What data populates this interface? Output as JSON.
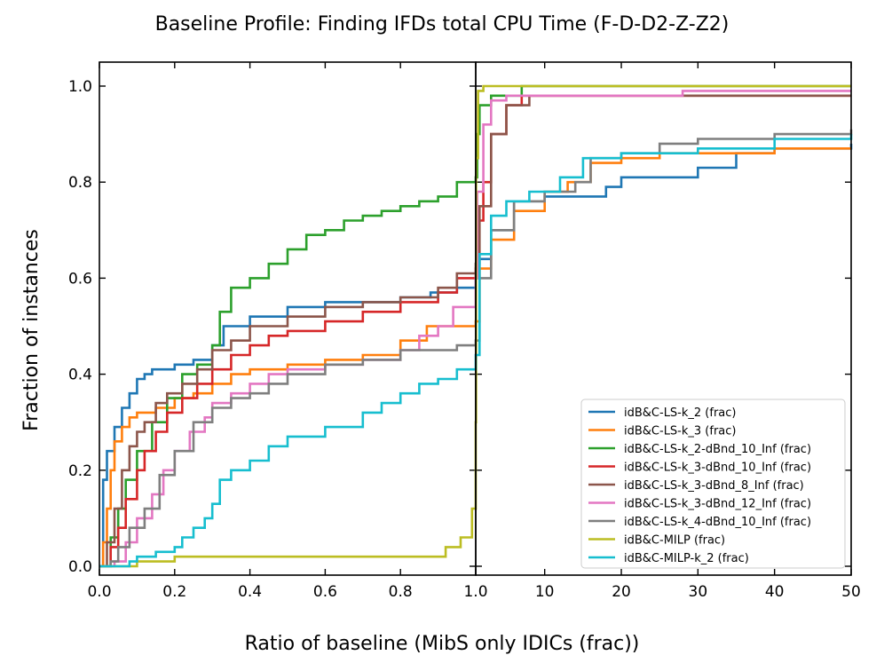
{
  "chart_data": {
    "type": "line",
    "title": "Baseline Profile: Finding IFDs total CPU Time (F-D-D2-Z-Z2)",
    "xlabel": "Ratio of baseline (MibS only IDICs (frac))",
    "ylabel": "Fraction of instances",
    "left_panel": {
      "xlim": [
        0.0,
        1.0
      ],
      "xticks": [
        "0.0",
        "0.2",
        "0.4",
        "0.6",
        "0.8"
      ]
    },
    "right_panel": {
      "xlim": [
        1.0,
        50
      ],
      "xticks": [
        "1.0",
        "10",
        "20",
        "30",
        "40",
        "50"
      ]
    },
    "ylim": [
      0.0,
      1.0
    ],
    "yticks": [
      "0.0",
      "0.2",
      "0.4",
      "0.6",
      "0.8",
      "1.0"
    ],
    "legend_position": "lower-right",
    "series": [
      {
        "name": "idB&C-LS-k_2 (frac)",
        "color": "#1f77b4",
        "points": [
          [
            0,
            0
          ],
          [
            0.01,
            0.18
          ],
          [
            0.02,
            0.24
          ],
          [
            0.04,
            0.29
          ],
          [
            0.06,
            0.33
          ],
          [
            0.08,
            0.36
          ],
          [
            0.1,
            0.39
          ],
          [
            0.12,
            0.4
          ],
          [
            0.14,
            0.41
          ],
          [
            0.2,
            0.42
          ],
          [
            0.25,
            0.43
          ],
          [
            0.3,
            0.46
          ],
          [
            0.33,
            0.5
          ],
          [
            0.4,
            0.52
          ],
          [
            0.5,
            0.54
          ],
          [
            0.6,
            0.55
          ],
          [
            0.7,
            0.55
          ],
          [
            0.8,
            0.56
          ],
          [
            0.88,
            0.57
          ],
          [
            0.95,
            0.58
          ],
          [
            1.0,
            0.6
          ],
          [
            1.5,
            0.64
          ],
          [
            3,
            0.7
          ],
          [
            6,
            0.76
          ],
          [
            10,
            0.77
          ],
          [
            15,
            0.77
          ],
          [
            18,
            0.79
          ],
          [
            20,
            0.81
          ],
          [
            25,
            0.81
          ],
          [
            30,
            0.83
          ],
          [
            35,
            0.86
          ],
          [
            40,
            0.87
          ],
          [
            45,
            0.87
          ],
          [
            50,
            0.88
          ]
        ]
      },
      {
        "name": "idB&C-LS-k_3 (frac)",
        "color": "#ff7f0e",
        "points": [
          [
            0,
            0
          ],
          [
            0.01,
            0.05
          ],
          [
            0.02,
            0.12
          ],
          [
            0.03,
            0.2
          ],
          [
            0.04,
            0.26
          ],
          [
            0.06,
            0.29
          ],
          [
            0.08,
            0.31
          ],
          [
            0.1,
            0.32
          ],
          [
            0.15,
            0.33
          ],
          [
            0.2,
            0.35
          ],
          [
            0.25,
            0.36
          ],
          [
            0.3,
            0.38
          ],
          [
            0.35,
            0.4
          ],
          [
            0.4,
            0.41
          ],
          [
            0.5,
            0.42
          ],
          [
            0.6,
            0.43
          ],
          [
            0.7,
            0.44
          ],
          [
            0.8,
            0.47
          ],
          [
            0.87,
            0.5
          ],
          [
            0.9,
            0.5
          ],
          [
            1.0,
            0.51
          ],
          [
            1.5,
            0.62
          ],
          [
            3,
            0.68
          ],
          [
            6,
            0.74
          ],
          [
            10,
            0.78
          ],
          [
            13,
            0.8
          ],
          [
            16,
            0.84
          ],
          [
            20,
            0.85
          ],
          [
            25,
            0.86
          ],
          [
            30,
            0.86
          ],
          [
            40,
            0.87
          ],
          [
            50,
            0.87
          ]
        ]
      },
      {
        "name": "idB&C-LS-k_2-dBnd_10_Inf (frac)",
        "color": "#2ca02c",
        "points": [
          [
            0,
            0
          ],
          [
            0.03,
            0.06
          ],
          [
            0.05,
            0.12
          ],
          [
            0.07,
            0.18
          ],
          [
            0.1,
            0.24
          ],
          [
            0.14,
            0.3
          ],
          [
            0.18,
            0.35
          ],
          [
            0.22,
            0.4
          ],
          [
            0.26,
            0.42
          ],
          [
            0.3,
            0.46
          ],
          [
            0.32,
            0.53
          ],
          [
            0.35,
            0.58
          ],
          [
            0.4,
            0.6
          ],
          [
            0.45,
            0.63
          ],
          [
            0.5,
            0.66
          ],
          [
            0.55,
            0.69
          ],
          [
            0.6,
            0.7
          ],
          [
            0.65,
            0.72
          ],
          [
            0.7,
            0.73
          ],
          [
            0.75,
            0.74
          ],
          [
            0.8,
            0.75
          ],
          [
            0.85,
            0.76
          ],
          [
            0.9,
            0.77
          ],
          [
            0.95,
            0.8
          ],
          [
            1.0,
            0.81
          ],
          [
            1.2,
            0.9
          ],
          [
            1.5,
            0.96
          ],
          [
            3,
            0.98
          ],
          [
            7,
            1.0
          ],
          [
            50,
            1.0
          ]
        ]
      },
      {
        "name": "idB&C-LS-k_3-dBnd_10_Inf (frac)",
        "color": "#d62728",
        "points": [
          [
            0,
            0
          ],
          [
            0.03,
            0.04
          ],
          [
            0.05,
            0.08
          ],
          [
            0.07,
            0.14
          ],
          [
            0.1,
            0.2
          ],
          [
            0.12,
            0.24
          ],
          [
            0.15,
            0.28
          ],
          [
            0.18,
            0.32
          ],
          [
            0.22,
            0.35
          ],
          [
            0.26,
            0.38
          ],
          [
            0.3,
            0.41
          ],
          [
            0.35,
            0.44
          ],
          [
            0.4,
            0.46
          ],
          [
            0.45,
            0.48
          ],
          [
            0.5,
            0.49
          ],
          [
            0.6,
            0.51
          ],
          [
            0.7,
            0.53
          ],
          [
            0.8,
            0.55
          ],
          [
            0.9,
            0.57
          ],
          [
            0.95,
            0.6
          ],
          [
            1.0,
            0.62
          ],
          [
            1.2,
            0.72
          ],
          [
            2,
            0.8
          ],
          [
            3,
            0.9
          ],
          [
            5,
            0.96
          ],
          [
            7,
            0.98
          ],
          [
            50,
            0.98
          ]
        ]
      },
      {
        "name": "idB&C-LS-k_3-dBnd_8_Inf (frac)",
        "color": "#8c564b",
        "points": [
          [
            0,
            0
          ],
          [
            0.02,
            0.05
          ],
          [
            0.04,
            0.12
          ],
          [
            0.06,
            0.2
          ],
          [
            0.08,
            0.25
          ],
          [
            0.1,
            0.28
          ],
          [
            0.12,
            0.3
          ],
          [
            0.15,
            0.34
          ],
          [
            0.18,
            0.36
          ],
          [
            0.22,
            0.38
          ],
          [
            0.26,
            0.41
          ],
          [
            0.3,
            0.45
          ],
          [
            0.35,
            0.47
          ],
          [
            0.4,
            0.5
          ],
          [
            0.5,
            0.52
          ],
          [
            0.6,
            0.54
          ],
          [
            0.7,
            0.55
          ],
          [
            0.8,
            0.56
          ],
          [
            0.9,
            0.58
          ],
          [
            0.95,
            0.61
          ],
          [
            1.0,
            0.63
          ],
          [
            1.5,
            0.75
          ],
          [
            3,
            0.9
          ],
          [
            5,
            0.96
          ],
          [
            8,
            0.98
          ],
          [
            50,
            0.98
          ]
        ]
      },
      {
        "name": "idB&C-LS-k_3-dBnd_12_Inf (frac)",
        "color": "#e377c2",
        "points": [
          [
            0,
            0
          ],
          [
            0.04,
            0.01
          ],
          [
            0.07,
            0.05
          ],
          [
            0.1,
            0.1
          ],
          [
            0.14,
            0.15
          ],
          [
            0.17,
            0.2
          ],
          [
            0.2,
            0.24
          ],
          [
            0.24,
            0.28
          ],
          [
            0.28,
            0.31
          ],
          [
            0.3,
            0.34
          ],
          [
            0.35,
            0.36
          ],
          [
            0.4,
            0.38
          ],
          [
            0.45,
            0.4
          ],
          [
            0.5,
            0.41
          ],
          [
            0.6,
            0.42
          ],
          [
            0.7,
            0.43
          ],
          [
            0.8,
            0.45
          ],
          [
            0.85,
            0.48
          ],
          [
            0.9,
            0.5
          ],
          [
            0.94,
            0.54
          ],
          [
            1.0,
            0.6
          ],
          [
            1.2,
            0.78
          ],
          [
            2,
            0.92
          ],
          [
            3,
            0.97
          ],
          [
            5,
            0.98
          ],
          [
            28,
            0.99
          ],
          [
            50,
            0.99
          ]
        ]
      },
      {
        "name": "idB&C-LS-k_4-dBnd_10_Inf (frac)",
        "color": "#7f7f7f",
        "points": [
          [
            0,
            0
          ],
          [
            0.03,
            0.01
          ],
          [
            0.05,
            0.04
          ],
          [
            0.08,
            0.08
          ],
          [
            0.12,
            0.12
          ],
          [
            0.16,
            0.19
          ],
          [
            0.2,
            0.24
          ],
          [
            0.25,
            0.3
          ],
          [
            0.3,
            0.33
          ],
          [
            0.35,
            0.35
          ],
          [
            0.4,
            0.36
          ],
          [
            0.45,
            0.38
          ],
          [
            0.5,
            0.4
          ],
          [
            0.6,
            0.42
          ],
          [
            0.7,
            0.43
          ],
          [
            0.8,
            0.45
          ],
          [
            0.9,
            0.45
          ],
          [
            0.95,
            0.46
          ],
          [
            1.0,
            0.47
          ],
          [
            1.5,
            0.6
          ],
          [
            3,
            0.7
          ],
          [
            6,
            0.76
          ],
          [
            10,
            0.78
          ],
          [
            14,
            0.8
          ],
          [
            16,
            0.85
          ],
          [
            20,
            0.86
          ],
          [
            25,
            0.88
          ],
          [
            30,
            0.89
          ],
          [
            40,
            0.9
          ],
          [
            50,
            0.91
          ]
        ]
      },
      {
        "name": "idB&C-MILP (frac)",
        "color": "#bcbd22",
        "points": [
          [
            0,
            0
          ],
          [
            0.05,
            0
          ],
          [
            0.1,
            0.01
          ],
          [
            0.2,
            0.02
          ],
          [
            0.5,
            0.02
          ],
          [
            0.87,
            0.02
          ],
          [
            0.92,
            0.04
          ],
          [
            0.96,
            0.06
          ],
          [
            0.99,
            0.12
          ],
          [
            1.0,
            0.3
          ],
          [
            1.05,
            0.85
          ],
          [
            1.3,
            0.99
          ],
          [
            2,
            1.0
          ],
          [
            50,
            1.0
          ]
        ]
      },
      {
        "name": "idB&C-MILP-k_2 (frac)",
        "color": "#17becf",
        "points": [
          [
            0,
            0
          ],
          [
            0.05,
            0
          ],
          [
            0.08,
            0.01
          ],
          [
            0.1,
            0.02
          ],
          [
            0.15,
            0.03
          ],
          [
            0.2,
            0.04
          ],
          [
            0.22,
            0.06
          ],
          [
            0.25,
            0.08
          ],
          [
            0.28,
            0.1
          ],
          [
            0.3,
            0.13
          ],
          [
            0.32,
            0.18
          ],
          [
            0.35,
            0.2
          ],
          [
            0.4,
            0.22
          ],
          [
            0.45,
            0.25
          ],
          [
            0.5,
            0.27
          ],
          [
            0.6,
            0.29
          ],
          [
            0.7,
            0.32
          ],
          [
            0.75,
            0.34
          ],
          [
            0.8,
            0.36
          ],
          [
            0.85,
            0.38
          ],
          [
            0.9,
            0.39
          ],
          [
            0.95,
            0.41
          ],
          [
            1.0,
            0.44
          ],
          [
            1.5,
            0.65
          ],
          [
            3,
            0.73
          ],
          [
            5,
            0.76
          ],
          [
            8,
            0.78
          ],
          [
            12,
            0.81
          ],
          [
            15,
            0.85
          ],
          [
            20,
            0.86
          ],
          [
            30,
            0.87
          ],
          [
            40,
            0.89
          ],
          [
            50,
            0.9
          ]
        ]
      }
    ]
  }
}
